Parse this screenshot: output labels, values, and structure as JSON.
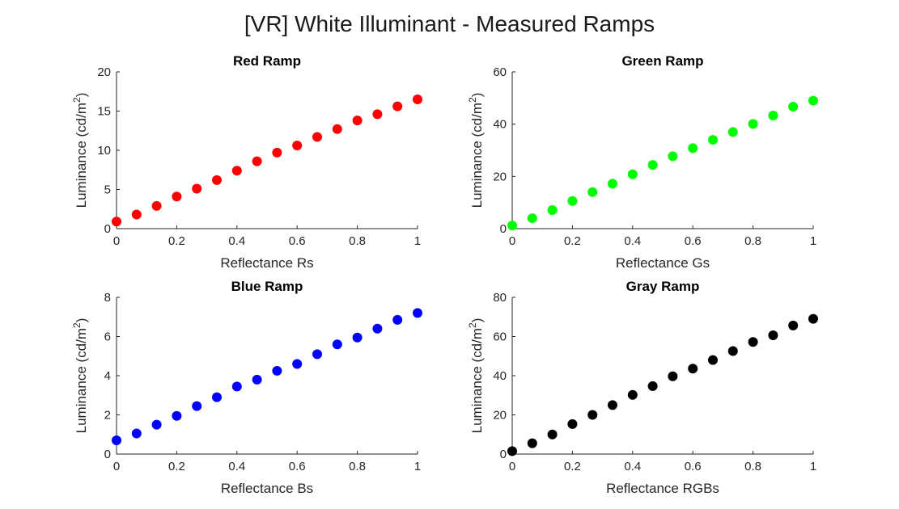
{
  "figure": {
    "title": "[VR] White Illuminant - Measured Ramps"
  },
  "chart_data": [
    {
      "type": "scatter",
      "title": "Red Ramp",
      "xlabel": "Reflectance Rs",
      "ylabel": "Luminance (cd/m",
      "ylabel_sup": "2",
      "ylabel_end": ")",
      "xlim": [
        0,
        1
      ],
      "ylim": [
        0,
        20
      ],
      "xticks": [
        0,
        0.2,
        0.4,
        0.6,
        0.8,
        1
      ],
      "xtick_labels": [
        "0",
        "0.2",
        "0.4",
        "0.6",
        "0.8",
        "1"
      ],
      "yticks": [
        0,
        5,
        10,
        15,
        20
      ],
      "ytick_labels": [
        "0",
        "5",
        "10",
        "15",
        "20"
      ],
      "color": "#ff0000",
      "x": [
        0,
        0.0667,
        0.1333,
        0.2,
        0.2667,
        0.3333,
        0.4,
        0.4667,
        0.5333,
        0.6,
        0.6667,
        0.7333,
        0.8,
        0.8667,
        0.9333,
        1
      ],
      "y": [
        0.9,
        1.8,
        2.9,
        4.1,
        5.1,
        6.2,
        7.4,
        8.6,
        9.7,
        10.6,
        11.7,
        12.7,
        13.8,
        14.6,
        15.6,
        16.5
      ]
    },
    {
      "type": "scatter",
      "title": "Green Ramp",
      "xlabel": "Reflectance Gs",
      "ylabel": "Luminance (cd/m",
      "ylabel_sup": "2",
      "ylabel_end": ")",
      "xlim": [
        0,
        1
      ],
      "ylim": [
        0,
        60
      ],
      "xticks": [
        0,
        0.2,
        0.4,
        0.6,
        0.8,
        1
      ],
      "xtick_labels": [
        "0",
        "0.2",
        "0.4",
        "0.6",
        "0.8",
        "1"
      ],
      "yticks": [
        0,
        20,
        40,
        60
      ],
      "ytick_labels": [
        "0",
        "20",
        "40",
        "60"
      ],
      "color": "#00ff00",
      "x": [
        0,
        0.0667,
        0.1333,
        0.2,
        0.2667,
        0.3333,
        0.4,
        0.4667,
        0.5333,
        0.6,
        0.6667,
        0.7333,
        0.8,
        0.8667,
        0.9333,
        1
      ],
      "y": [
        1.2,
        4.0,
        7.1,
        10.6,
        14.0,
        17.2,
        20.8,
        24.4,
        27.7,
        30.8,
        34.0,
        37.0,
        40.1,
        43.3,
        46.7,
        49.0
      ]
    },
    {
      "type": "scatter",
      "title": "Blue Ramp",
      "xlabel": "Reflectance Bs",
      "ylabel": "Luminance (cd/m",
      "ylabel_sup": "2",
      "ylabel_end": ")",
      "xlim": [
        0,
        1
      ],
      "ylim": [
        0,
        8
      ],
      "xticks": [
        0,
        0.2,
        0.4,
        0.6,
        0.8,
        1
      ],
      "xtick_labels": [
        "0",
        "0.2",
        "0.4",
        "0.6",
        "0.8",
        "1"
      ],
      "yticks": [
        0,
        2,
        4,
        6,
        8
      ],
      "ytick_labels": [
        "0",
        "2",
        "4",
        "6",
        "8"
      ],
      "color": "#0000ff",
      "x": [
        0,
        0.0667,
        0.1333,
        0.2,
        0.2667,
        0.3333,
        0.4,
        0.4667,
        0.5333,
        0.6,
        0.6667,
        0.7333,
        0.8,
        0.8667,
        0.9333,
        1
      ],
      "y": [
        0.7,
        1.05,
        1.5,
        1.95,
        2.45,
        2.9,
        3.45,
        3.8,
        4.25,
        4.6,
        5.1,
        5.6,
        5.95,
        6.4,
        6.85,
        7.2
      ]
    },
    {
      "type": "scatter",
      "title": "Gray Ramp",
      "xlabel": "Reflectance RGBs",
      "ylabel": "Luminance (cd/m",
      "ylabel_sup": "2",
      "ylabel_end": ")",
      "xlim": [
        0,
        1
      ],
      "ylim": [
        0,
        80
      ],
      "xticks": [
        0,
        0.2,
        0.4,
        0.6,
        0.8,
        1
      ],
      "xtick_labels": [
        "0",
        "0.2",
        "0.4",
        "0.6",
        "0.8",
        "1"
      ],
      "yticks": [
        0,
        20,
        40,
        60,
        80
      ],
      "ytick_labels": [
        "0",
        "20",
        "40",
        "60",
        "80"
      ],
      "color": "#000000",
      "x": [
        0,
        0.0667,
        0.1333,
        0.2,
        0.2667,
        0.3333,
        0.4,
        0.4667,
        0.5333,
        0.6,
        0.6667,
        0.7333,
        0.8,
        0.8667,
        0.9333,
        1
      ],
      "y": [
        1.5,
        5.5,
        10.0,
        15.3,
        20.0,
        25.0,
        30.2,
        34.7,
        39.7,
        43.6,
        48.0,
        52.6,
        57.2,
        60.6,
        65.6,
        69.0
      ]
    }
  ]
}
